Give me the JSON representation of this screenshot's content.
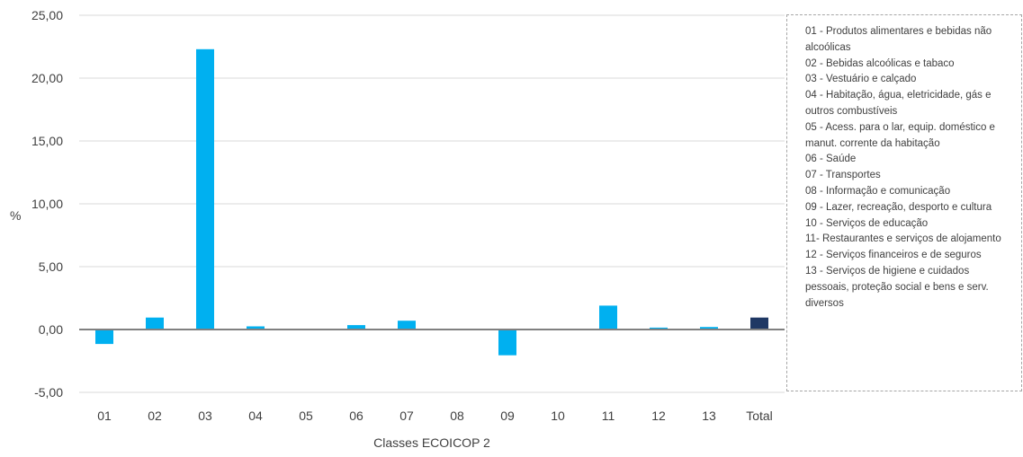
{
  "chart_data": {
    "type": "bar",
    "title": "",
    "xlabel": "Classes ECOICOP 2",
    "ylabel": "%",
    "ylim": [
      -5,
      25
    ],
    "yticks": [
      "-5,00",
      "0,00",
      "5,00",
      "10,00",
      "15,00",
      "20,00",
      "25,00"
    ],
    "ytick_values": [
      -5,
      0,
      5,
      10,
      15,
      20,
      25
    ],
    "grid": true,
    "categories": [
      "01",
      "02",
      "03",
      "04",
      "05",
      "06",
      "07",
      "08",
      "09",
      "10",
      "11",
      "12",
      "13",
      "Total"
    ],
    "values": [
      -1.15,
      0.95,
      22.3,
      0.25,
      -0.05,
      0.35,
      0.7,
      -0.05,
      -2.05,
      0.0,
      1.9,
      0.15,
      0.2,
      0.95
    ],
    "bar_color": "#00b0f0",
    "total_color": "#1f3864",
    "legend": {
      "placement": "right",
      "items": [
        "01 - Produtos alimentares e bebidas não alcoólicas",
        "02 - Bebidas alcoólicas e tabaco",
        "03 - Vestuário e calçado",
        "04 - Habitação, água, eletricidade, gás e outros combustíveis",
        "05 - Acess. para o lar, equip. doméstico e manut. corrente da habitação",
        "06 - Saúde",
        "07 - Transportes",
        "08 - Informação e comunicação",
        "09 - Lazer, recreação, desporto e cultura",
        "10 - Serviços de educação",
        "11- Restaurantes e serviços de alojamento",
        "12 - Serviços financeiros e de seguros",
        "13 - Serviços de higiene e cuidados pessoais, proteção social e bens e serv. diversos"
      ]
    }
  }
}
